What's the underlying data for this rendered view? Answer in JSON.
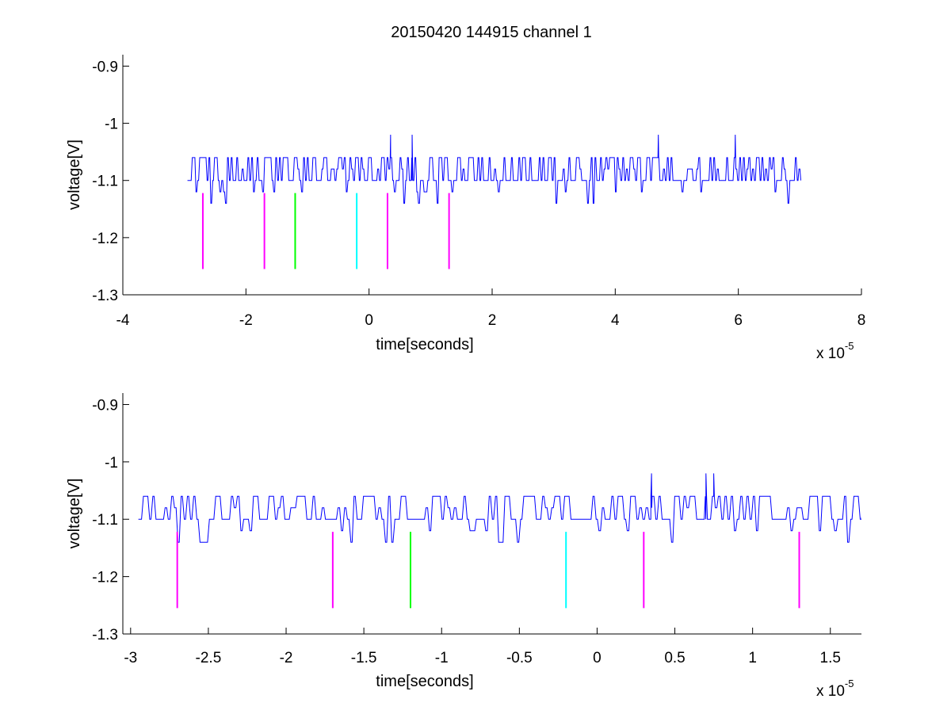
{
  "figure": {
    "title": "20150420 144915 channel 1",
    "colors": {
      "signal": "#0000ff",
      "marker_magenta": "#ff00ff",
      "marker_green": "#00ff00",
      "marker_cyan": "#00ffff",
      "axes": "#000000",
      "background": "#ffffff"
    }
  },
  "chart_data": [
    {
      "type": "line",
      "title": "20150420 144915 channel 1",
      "xlabel": "time[seconds]",
      "ylabel": "voltage[V]",
      "x_multiplier_base": "x 10",
      "x_multiplier_exponent": "-5",
      "xlim": [
        -4,
        8
      ],
      "ylim": [
        -1.3,
        -0.88
      ],
      "xticks": [
        -4,
        -2,
        0,
        2,
        4,
        6,
        8
      ],
      "xtick_labels": [
        "-4",
        "-2",
        "0",
        "2",
        "4",
        "6",
        "8"
      ],
      "yticks": [
        -1.3,
        -1.2,
        -1.1,
        -1.0,
        -0.9
      ],
      "ytick_labels": [
        "-1.3",
        "-1.2",
        "-1.1",
        "-1",
        "-0.9"
      ],
      "grid": false,
      "series": [
        {
          "color": "#0000ff",
          "x_range": [
            -2.95,
            7.0
          ],
          "baseline": -1.1,
          "levels": [
            -1.14,
            -1.12,
            -1.1,
            -1.08,
            -1.06,
            -1.04,
            -1.02
          ],
          "spikes": [
            {
              "x": 0.35,
              "y": -1.02
            },
            {
              "x": 0.7,
              "y": -1.02
            },
            {
              "x": 4.7,
              "y": -1.02
            },
            {
              "x": 5.95,
              "y": -1.02
            }
          ]
        }
      ],
      "markers": [
        {
          "x": -2.7,
          "y_bottom": -1.255,
          "y_top": -1.122,
          "color": "#ff00ff"
        },
        {
          "x": -1.7,
          "y_bottom": -1.255,
          "y_top": -1.122,
          "color": "#ff00ff"
        },
        {
          "x": -1.2,
          "y_bottom": -1.255,
          "y_top": -1.122,
          "color": "#00ff00"
        },
        {
          "x": -0.2,
          "y_bottom": -1.255,
          "y_top": -1.122,
          "color": "#00ffff"
        },
        {
          "x": 0.3,
          "y_bottom": -1.255,
          "y_top": -1.122,
          "color": "#ff00ff"
        },
        {
          "x": 1.3,
          "y_bottom": -1.255,
          "y_top": -1.122,
          "color": "#ff00ff"
        }
      ]
    },
    {
      "type": "line",
      "title": "",
      "xlabel": "time[seconds]",
      "ylabel": "voltage[V]",
      "x_multiplier_base": "x 10",
      "x_multiplier_exponent": "-5",
      "xlim": [
        -3.05,
        1.7
      ],
      "ylim": [
        -1.3,
        -0.88
      ],
      "xticks": [
        -3,
        -2.5,
        -2,
        -1.5,
        -1,
        -0.5,
        0,
        0.5,
        1,
        1.5
      ],
      "xtick_labels": [
        "-3",
        "-2.5",
        "-2",
        "-1.5",
        "-1",
        "-0.5",
        "0",
        "0.5",
        "1",
        "1.5"
      ],
      "yticks": [
        -1.3,
        -1.2,
        -1.1,
        -1.0,
        -0.9
      ],
      "ytick_labels": [
        "-1.3",
        "-1.2",
        "-1.1",
        "-1",
        "-0.9"
      ],
      "grid": false,
      "series": [
        {
          "color": "#0000ff",
          "x_range": [
            -2.95,
            1.7
          ],
          "baseline": -1.1,
          "levels": [
            -1.14,
            -1.12,
            -1.1,
            -1.08,
            -1.06,
            -1.04,
            -1.02
          ],
          "spikes": [
            {
              "x": 0.35,
              "y": -1.02
            },
            {
              "x": 0.7,
              "y": -1.02
            },
            {
              "x": 0.75,
              "y": -1.02
            }
          ]
        }
      ],
      "markers": [
        {
          "x": -2.7,
          "y_bottom": -1.255,
          "y_top": -1.122,
          "color": "#ff00ff"
        },
        {
          "x": -1.7,
          "y_bottom": -1.255,
          "y_top": -1.122,
          "color": "#ff00ff"
        },
        {
          "x": -1.2,
          "y_bottom": -1.255,
          "y_top": -1.122,
          "color": "#00ff00"
        },
        {
          "x": -0.2,
          "y_bottom": -1.255,
          "y_top": -1.122,
          "color": "#00ffff"
        },
        {
          "x": 0.3,
          "y_bottom": -1.255,
          "y_top": -1.122,
          "color": "#ff00ff"
        },
        {
          "x": 1.3,
          "y_bottom": -1.255,
          "y_top": -1.122,
          "color": "#ff00ff"
        }
      ]
    }
  ]
}
